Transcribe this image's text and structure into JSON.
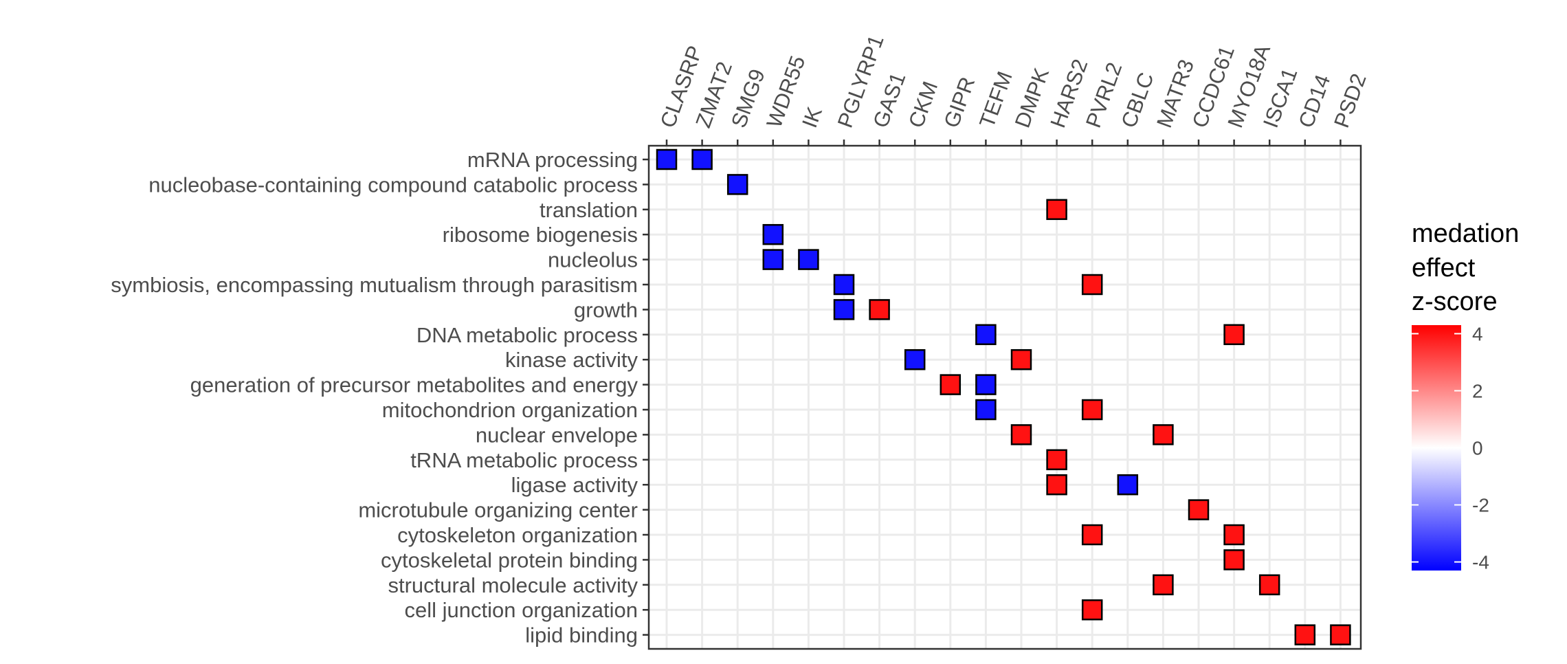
{
  "chart_data": {
    "type": "heatmap",
    "title": "",
    "xlabel": "",
    "ylabel": "",
    "x_categories": [
      "CLASRP",
      "ZMAT2",
      "SMG9",
      "WDR55",
      "IK",
      "PGLYRP1",
      "GAS1",
      "CKM",
      "GIPR",
      "TEFM",
      "DMPK",
      "HARS2",
      "PVRL2",
      "CBLC",
      "MATR3",
      "CCDC61",
      "MYO18A",
      "ISCA1",
      "CD14",
      "PSD2"
    ],
    "y_categories": [
      "mRNA processing",
      "nucleobase-containing compound catabolic process",
      "translation",
      "ribosome biogenesis",
      "nucleolus",
      "symbiosis, encompassing mutualism through parasitism",
      "growth",
      "DNA metabolic process",
      "kinase activity",
      "generation of precursor metabolites and energy",
      "mitochondrion organization",
      "nuclear envelope",
      "tRNA metabolic process",
      "ligase activity",
      "microtubule organizing center",
      "cytoskeleton organization",
      "cytoskeletal protein binding",
      "structural molecule activity",
      "cell junction organization",
      "lipid binding"
    ],
    "cells": [
      {
        "x": "CLASRP",
        "y": "mRNA processing",
        "value": -4
      },
      {
        "x": "ZMAT2",
        "y": "mRNA processing",
        "value": -4
      },
      {
        "x": "SMG9",
        "y": "nucleobase-containing compound catabolic process",
        "value": -4
      },
      {
        "x": "HARS2",
        "y": "translation",
        "value": 4
      },
      {
        "x": "WDR55",
        "y": "ribosome biogenesis",
        "value": -4
      },
      {
        "x": "WDR55",
        "y": "nucleolus",
        "value": -4
      },
      {
        "x": "IK",
        "y": "nucleolus",
        "value": -4
      },
      {
        "x": "PGLYRP1",
        "y": "symbiosis, encompassing mutualism through parasitism",
        "value": -4
      },
      {
        "x": "PVRL2",
        "y": "symbiosis, encompassing mutualism through parasitism",
        "value": 4
      },
      {
        "x": "PGLYRP1",
        "y": "growth",
        "value": -4
      },
      {
        "x": "GAS1",
        "y": "growth",
        "value": 4
      },
      {
        "x": "TEFM",
        "y": "DNA metabolic process",
        "value": -4
      },
      {
        "x": "MYO18A",
        "y": "DNA metabolic process",
        "value": 4
      },
      {
        "x": "CKM",
        "y": "kinase activity",
        "value": -4
      },
      {
        "x": "DMPK",
        "y": "kinase activity",
        "value": 4
      },
      {
        "x": "GIPR",
        "y": "generation of precursor metabolites and energy",
        "value": 4
      },
      {
        "x": "TEFM",
        "y": "generation of precursor metabolites and energy",
        "value": -4
      },
      {
        "x": "TEFM",
        "y": "mitochondrion organization",
        "value": -4
      },
      {
        "x": "PVRL2",
        "y": "mitochondrion organization",
        "value": 4
      },
      {
        "x": "DMPK",
        "y": "nuclear envelope",
        "value": 4
      },
      {
        "x": "MATR3",
        "y": "nuclear envelope",
        "value": 4
      },
      {
        "x": "HARS2",
        "y": "tRNA metabolic process",
        "value": 4
      },
      {
        "x": "HARS2",
        "y": "ligase activity",
        "value": 4
      },
      {
        "x": "CBLC",
        "y": "ligase activity",
        "value": -4
      },
      {
        "x": "CCDC61",
        "y": "microtubule organizing center",
        "value": 4
      },
      {
        "x": "PVRL2",
        "y": "cytoskeleton organization",
        "value": 4
      },
      {
        "x": "MYO18A",
        "y": "cytoskeleton organization",
        "value": 4
      },
      {
        "x": "MYO18A",
        "y": "cytoskeletal protein binding",
        "value": 4
      },
      {
        "x": "MATR3",
        "y": "structural molecule activity",
        "value": 4
      },
      {
        "x": "ISCA1",
        "y": "structural molecule activity",
        "value": 4
      },
      {
        "x": "PVRL2",
        "y": "cell junction organization",
        "value": 4
      },
      {
        "x": "CD14",
        "y": "lipid binding",
        "value": 4
      },
      {
        "x": "PSD2",
        "y": "lipid binding",
        "value": 4
      }
    ],
    "legend": {
      "title_lines": [
        "medation",
        "effect",
        "z-score"
      ],
      "ticks": [
        4,
        2,
        0,
        -2,
        -4
      ],
      "range": [
        -4.3,
        4.3
      ],
      "color_low": "#0000ff",
      "color_mid": "#ffffff",
      "color_high": "#ff0000",
      "placement": "right"
    },
    "grid": true,
    "colors": {
      "panel_border": "#333333",
      "grid": "#ebebeb",
      "tick": "#333333",
      "tile_border": "#000000"
    }
  }
}
